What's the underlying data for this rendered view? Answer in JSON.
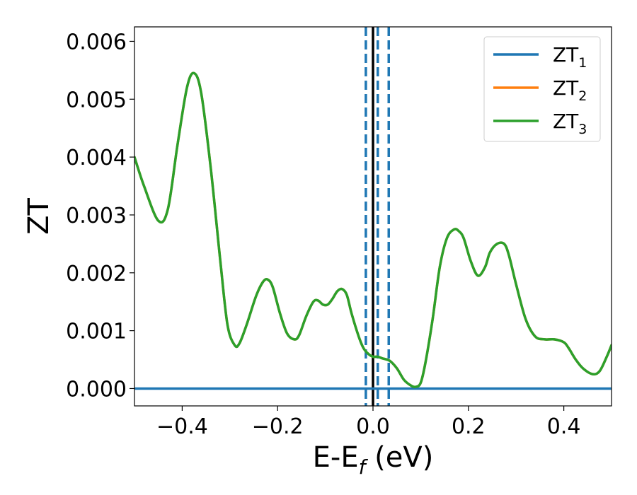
{
  "chart_data": {
    "type": "line",
    "xlabel_main": "E-E",
    "xlabel_sub": "f",
    "xlabel_unit": " (eV)",
    "ylabel": "ZT",
    "xlim": [
      -0.5,
      0.5
    ],
    "ylim": [
      -0.0003,
      0.00625
    ],
    "x_ticks": [
      -0.4,
      -0.2,
      0.0,
      0.2,
      0.4
    ],
    "x_tick_labels": [
      "−0.4",
      "−0.2",
      "0.0",
      "0.2",
      "0.4"
    ],
    "y_ticks": [
      0.0,
      0.001,
      0.002,
      0.003,
      0.004,
      0.005,
      0.006
    ],
    "y_tick_labels": [
      "0.000",
      "0.001",
      "0.002",
      "0.003",
      "0.004",
      "0.005",
      "0.006"
    ],
    "legend_position": "top-right",
    "series": [
      {
        "name": "ZT",
        "name_sub": "1",
        "color": "#1f77b4",
        "x": [
          -0.5,
          -0.48,
          -0.45,
          -0.43,
          -0.41,
          -0.39,
          -0.375,
          -0.36,
          -0.34,
          -0.32,
          -0.305,
          -0.29,
          -0.28,
          -0.265,
          -0.245,
          -0.23,
          -0.22,
          -0.21,
          -0.195,
          -0.18,
          -0.165,
          -0.155,
          -0.14,
          -0.125,
          -0.115,
          -0.105,
          -0.095,
          -0.085,
          -0.075,
          -0.065,
          -0.055,
          -0.045,
          -0.03,
          -0.02,
          -0.01,
          0.0,
          0.01,
          0.02,
          0.035,
          0.05,
          0.065,
          0.08,
          0.09,
          0.1,
          0.11,
          0.125,
          0.14,
          0.155,
          0.17,
          0.18,
          0.19,
          0.205,
          0.22,
          0.235,
          0.245,
          0.26,
          0.275,
          0.285,
          0.3,
          0.32,
          0.34,
          0.36,
          0.38,
          0.4,
          0.41,
          0.425,
          0.44,
          0.46,
          0.475,
          0.49,
          0.5
        ],
        "y": [
          0.0,
          0.0,
          0.0,
          0.0,
          0.0,
          0.0,
          0.0,
          0.0,
          0.0,
          0.0,
          0.0,
          0.0,
          0.0,
          0.0,
          0.0,
          0.0,
          0.0,
          0.0,
          0.0,
          0.0,
          0.0,
          0.0,
          0.0,
          0.0,
          0.0,
          0.0,
          0.0,
          0.0,
          0.0,
          0.0,
          0.0,
          0.0,
          0.0,
          0.0,
          0.0,
          0.0,
          0.0,
          0.0,
          0.0,
          0.0,
          0.0,
          0.0,
          0.0,
          0.0,
          0.0,
          0.0,
          0.0,
          0.0,
          0.0,
          0.0,
          0.0,
          0.0,
          0.0,
          0.0,
          0.0,
          0.0,
          0.0,
          0.0,
          0.0,
          0.0,
          0.0,
          0.0,
          0.0,
          0.0,
          0.0,
          0.0,
          0.0,
          0.0,
          0.0,
          0.0,
          0.0
        ]
      },
      {
        "name": "ZT",
        "name_sub": "2",
        "color": "#ff7f0e",
        "x": [
          -0.5,
          -0.48,
          -0.45,
          -0.43,
          -0.41,
          -0.39,
          -0.375,
          -0.36,
          -0.34,
          -0.32,
          -0.305,
          -0.29,
          -0.28,
          -0.265,
          -0.245,
          -0.23,
          -0.22,
          -0.21,
          -0.195,
          -0.18,
          -0.165,
          -0.155,
          -0.14,
          -0.125,
          -0.115,
          -0.105,
          -0.095,
          -0.085,
          -0.075,
          -0.065,
          -0.055,
          -0.045,
          -0.03,
          -0.02,
          -0.01,
          0.0,
          0.01,
          0.02,
          0.035,
          0.05,
          0.065,
          0.08,
          0.09,
          0.1,
          0.11,
          0.125,
          0.14,
          0.155,
          0.17,
          0.18,
          0.19,
          0.205,
          0.22,
          0.235,
          0.245,
          0.26,
          0.275,
          0.285,
          0.3,
          0.32,
          0.34,
          0.36,
          0.38,
          0.4,
          0.41,
          0.425,
          0.44,
          0.46,
          0.475,
          0.49,
          0.5
        ],
        "y": [
          0.004,
          0.0035,
          0.0029,
          0.0031,
          0.0042,
          0.0052,
          0.00545,
          0.0051,
          0.0038,
          0.0022,
          0.0011,
          0.00075,
          0.00078,
          0.0011,
          0.0016,
          0.00185,
          0.00188,
          0.00175,
          0.0013,
          0.00095,
          0.00085,
          0.00092,
          0.00125,
          0.0015,
          0.00152,
          0.00145,
          0.00145,
          0.00155,
          0.00168,
          0.00172,
          0.00162,
          0.0013,
          0.0009,
          0.0007,
          0.0006,
          0.00055,
          0.00055,
          0.00052,
          0.00048,
          0.00035,
          0.00015,
          5e-05,
          3e-05,
          0.0001,
          0.00045,
          0.0012,
          0.0021,
          0.0026,
          0.00275,
          0.00272,
          0.0026,
          0.0022,
          0.00195,
          0.0021,
          0.00235,
          0.0025,
          0.0025,
          0.0023,
          0.0018,
          0.0012,
          0.0009,
          0.00085,
          0.00085,
          0.0008,
          0.0007,
          0.0005,
          0.00035,
          0.00025,
          0.0003,
          0.00055,
          0.00075
        ]
      },
      {
        "name": "ZT",
        "name_sub": "3",
        "color": "#2ca02c",
        "x": [
          -0.5,
          -0.48,
          -0.45,
          -0.43,
          -0.41,
          -0.39,
          -0.375,
          -0.36,
          -0.34,
          -0.32,
          -0.305,
          -0.29,
          -0.28,
          -0.265,
          -0.245,
          -0.23,
          -0.22,
          -0.21,
          -0.195,
          -0.18,
          -0.165,
          -0.155,
          -0.14,
          -0.125,
          -0.115,
          -0.105,
          -0.095,
          -0.085,
          -0.075,
          -0.065,
          -0.055,
          -0.045,
          -0.03,
          -0.02,
          -0.01,
          0.0,
          0.01,
          0.02,
          0.035,
          0.05,
          0.065,
          0.08,
          0.09,
          0.1,
          0.11,
          0.125,
          0.14,
          0.155,
          0.17,
          0.18,
          0.19,
          0.205,
          0.22,
          0.235,
          0.245,
          0.26,
          0.275,
          0.285,
          0.3,
          0.32,
          0.34,
          0.36,
          0.38,
          0.4,
          0.41,
          0.425,
          0.44,
          0.46,
          0.475,
          0.49,
          0.5
        ],
        "y": [
          0.004,
          0.0035,
          0.0029,
          0.0031,
          0.0042,
          0.0052,
          0.00545,
          0.0051,
          0.0038,
          0.0022,
          0.0011,
          0.00075,
          0.00078,
          0.0011,
          0.0016,
          0.00185,
          0.00188,
          0.00175,
          0.0013,
          0.00095,
          0.00085,
          0.00092,
          0.00125,
          0.0015,
          0.00152,
          0.00145,
          0.00145,
          0.00155,
          0.00168,
          0.00172,
          0.00162,
          0.0013,
          0.0009,
          0.0007,
          0.0006,
          0.00055,
          0.00055,
          0.00052,
          0.00048,
          0.00035,
          0.00015,
          5e-05,
          3e-05,
          0.0001,
          0.00045,
          0.0012,
          0.0021,
          0.0026,
          0.00275,
          0.00272,
          0.0026,
          0.0022,
          0.00195,
          0.0021,
          0.00235,
          0.0025,
          0.0025,
          0.0023,
          0.0018,
          0.0012,
          0.0009,
          0.00085,
          0.00085,
          0.0008,
          0.0007,
          0.0005,
          0.00035,
          0.00025,
          0.0003,
          0.00055,
          0.00075
        ]
      }
    ],
    "vertical_lines": [
      {
        "x": 0.0,
        "style": "solid",
        "color": "#000000"
      },
      {
        "x": -0.015,
        "style": "dashed",
        "color": "#1f77b4"
      },
      {
        "x": 0.01,
        "style": "dashed",
        "color": "#1f77b4"
      },
      {
        "x": 0.033,
        "style": "dashed",
        "color": "#1f77b4"
      }
    ]
  }
}
